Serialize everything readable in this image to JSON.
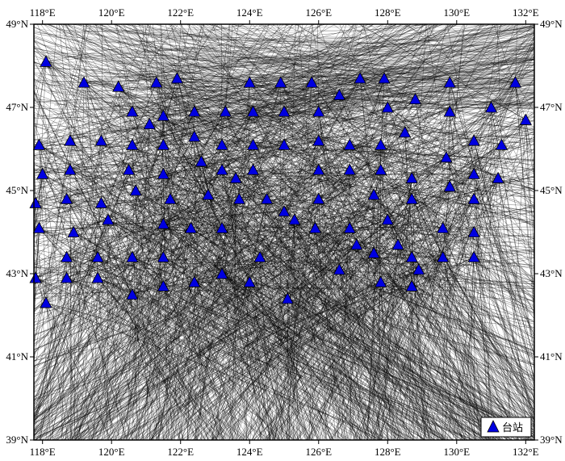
{
  "map": {
    "lon_range": [
      117.75,
      132.25
    ],
    "lat_range": [
      39,
      49
    ],
    "lon_ticks": [
      {
        "value": 118,
        "label": "118°E"
      },
      {
        "value": 120,
        "label": "120°E"
      },
      {
        "value": 122,
        "label": "122°E"
      },
      {
        "value": 124,
        "label": "124°E"
      },
      {
        "value": 126,
        "label": "126°E"
      },
      {
        "value": 128,
        "label": "128°E"
      },
      {
        "value": 130,
        "label": "130°E"
      },
      {
        "value": 132,
        "label": "132°E"
      }
    ],
    "lat_ticks": [
      {
        "value": 49,
        "label": "49°N"
      },
      {
        "value": 47,
        "label": "47°N"
      },
      {
        "value": 45,
        "label": "45°N"
      },
      {
        "value": 43,
        "label": "43°N"
      },
      {
        "value": 41,
        "label": "41°N"
      },
      {
        "value": 39,
        "label": "39°N"
      }
    ],
    "station_color": "#0000e0",
    "ray_color": "#000000",
    "legend": {
      "label": "台站",
      "placement": "bottom-right"
    },
    "stations": [
      [
        118.1,
        48.1
      ],
      [
        119.2,
        47.6
      ],
      [
        120.2,
        47.5
      ],
      [
        121.3,
        47.6
      ],
      [
        121.9,
        47.7
      ],
      [
        124.0,
        47.6
      ],
      [
        124.9,
        47.6
      ],
      [
        125.8,
        47.6
      ],
      [
        126.6,
        47.3
      ],
      [
        127.2,
        47.7
      ],
      [
        127.9,
        47.7
      ],
      [
        128.8,
        47.2
      ],
      [
        129.8,
        47.6
      ],
      [
        131.0,
        47.0
      ],
      [
        131.7,
        47.6
      ],
      [
        132.0,
        46.7
      ],
      [
        120.6,
        46.9
      ],
      [
        121.1,
        46.6
      ],
      [
        121.5,
        46.8
      ],
      [
        122.4,
        46.9
      ],
      [
        123.3,
        46.9
      ],
      [
        124.1,
        46.9
      ],
      [
        125.0,
        46.9
      ],
      [
        126.0,
        46.9
      ],
      [
        128.0,
        47.0
      ],
      [
        129.8,
        46.9
      ],
      [
        117.9,
        46.1
      ],
      [
        118.8,
        46.2
      ],
      [
        119.7,
        46.2
      ],
      [
        120.6,
        46.1
      ],
      [
        121.5,
        46.1
      ],
      [
        122.4,
        46.3
      ],
      [
        123.2,
        46.1
      ],
      [
        124.1,
        46.1
      ],
      [
        125.0,
        46.1
      ],
      [
        126.0,
        46.2
      ],
      [
        126.9,
        46.1
      ],
      [
        127.8,
        46.1
      ],
      [
        128.5,
        46.4
      ],
      [
        130.5,
        46.2
      ],
      [
        131.3,
        46.1
      ],
      [
        118.0,
        45.4
      ],
      [
        118.8,
        45.5
      ],
      [
        120.5,
        45.5
      ],
      [
        121.5,
        45.4
      ],
      [
        122.6,
        45.7
      ],
      [
        123.2,
        45.5
      ],
      [
        123.6,
        45.3
      ],
      [
        124.1,
        45.5
      ],
      [
        126.0,
        45.5
      ],
      [
        126.9,
        45.5
      ],
      [
        127.8,
        45.5
      ],
      [
        128.7,
        45.3
      ],
      [
        129.7,
        45.8
      ],
      [
        130.5,
        45.4
      ],
      [
        131.2,
        45.3
      ],
      [
        117.8,
        44.7
      ],
      [
        118.7,
        44.8
      ],
      [
        119.7,
        44.7
      ],
      [
        120.7,
        45.0
      ],
      [
        121.7,
        44.8
      ],
      [
        122.8,
        44.9
      ],
      [
        123.7,
        44.8
      ],
      [
        124.5,
        44.8
      ],
      [
        125.0,
        44.5
      ],
      [
        125.3,
        44.3
      ],
      [
        126.0,
        44.8
      ],
      [
        127.6,
        44.9
      ],
      [
        128.0,
        44.3
      ],
      [
        128.7,
        44.8
      ],
      [
        129.8,
        45.1
      ],
      [
        130.5,
        44.8
      ],
      [
        117.9,
        44.1
      ],
      [
        118.9,
        44.0
      ],
      [
        119.9,
        44.3
      ],
      [
        121.5,
        44.2
      ],
      [
        122.3,
        44.1
      ],
      [
        123.2,
        44.1
      ],
      [
        125.9,
        44.1
      ],
      [
        126.9,
        44.1
      ],
      [
        127.1,
        43.7
      ],
      [
        127.6,
        43.5
      ],
      [
        128.3,
        43.7
      ],
      [
        129.6,
        44.1
      ],
      [
        130.5,
        44.0
      ],
      [
        118.7,
        43.4
      ],
      [
        119.6,
        43.4
      ],
      [
        120.6,
        43.4
      ],
      [
        121.5,
        43.4
      ],
      [
        124.3,
        43.4
      ],
      [
        128.7,
        43.4
      ],
      [
        129.6,
        43.4
      ],
      [
        130.5,
        43.4
      ],
      [
        117.8,
        42.9
      ],
      [
        118.7,
        42.9
      ],
      [
        119.6,
        42.9
      ],
      [
        122.4,
        42.8
      ],
      [
        123.2,
        43.0
      ],
      [
        124.0,
        42.8
      ],
      [
        126.6,
        43.1
      ],
      [
        127.8,
        42.8
      ],
      [
        128.7,
        42.7
      ],
      [
        128.9,
        43.1
      ],
      [
        118.1,
        42.3
      ],
      [
        120.6,
        42.5
      ],
      [
        121.5,
        42.7
      ],
      [
        125.1,
        42.4
      ]
    ]
  }
}
